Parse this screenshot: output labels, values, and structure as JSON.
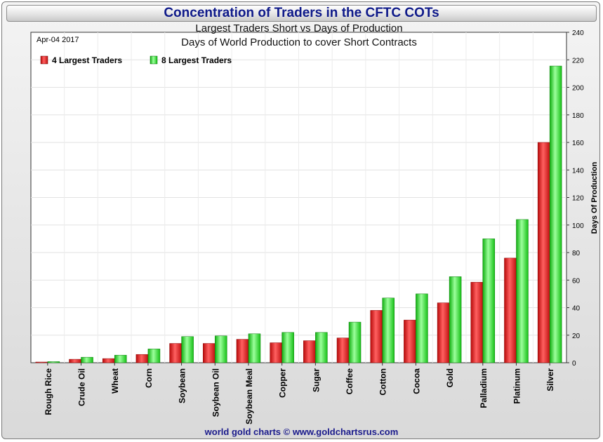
{
  "chart_data": {
    "type": "bar",
    "title": "Concentration of Traders in the CFTC COTs",
    "subtitle": "Largest Traders Short vs Days of Production",
    "subtitle2": "Days of World Production to cover Short Contracts",
    "date_label": "Apr-04  2017",
    "ylabel": "Days Of Production",
    "ylim": [
      0,
      240
    ],
    "yticks": [
      0,
      20,
      40,
      60,
      80,
      100,
      120,
      140,
      160,
      180,
      200,
      220,
      240
    ],
    "legend_position": "top-left",
    "categories": [
      "Rough Rice",
      "Crude Oil",
      "Wheat",
      "Corn",
      "Soybean",
      "Soybean Oil",
      "Soybean Meal",
      "Copper",
      "Sugar",
      "Coffee",
      "Cotton",
      "Cocoa",
      "Gold",
      "Palladium",
      "Platinum",
      "Silver"
    ],
    "series": [
      {
        "name": "4 Largest Traders",
        "color": "#e82020",
        "values": [
          0.5,
          2.5,
          3,
          6,
          14,
          14,
          17,
          14.5,
          16,
          18,
          38,
          31,
          43.5,
          58.5,
          76,
          160
        ]
      },
      {
        "name": "8 Largest Traders",
        "color": "#22e022",
        "values": [
          0.8,
          4,
          5.5,
          10,
          19,
          19.5,
          21,
          22,
          22,
          29.5,
          47,
          50,
          62.5,
          90,
          104,
          215.5
        ]
      }
    ],
    "footer": "world gold charts © www.goldchartsrus.com"
  }
}
